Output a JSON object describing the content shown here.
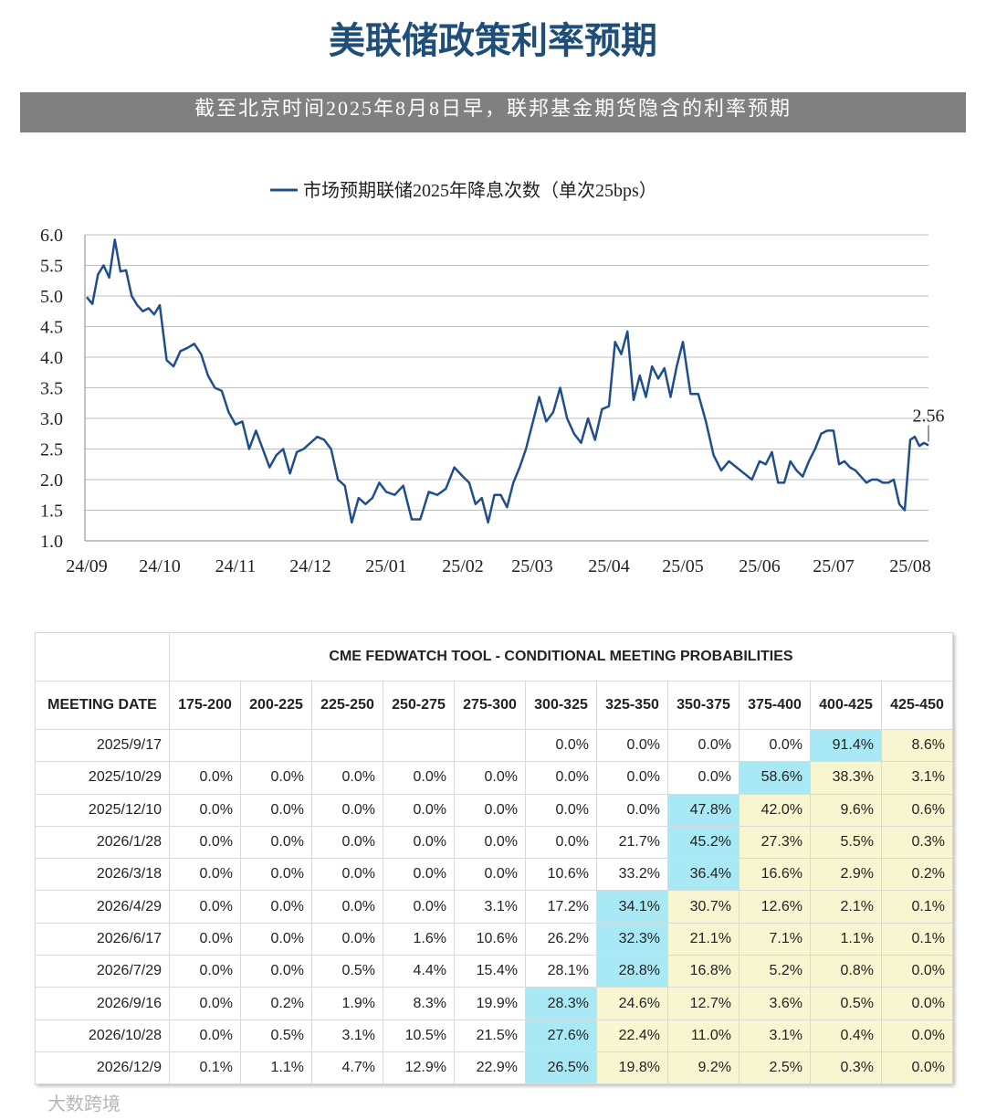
{
  "title": "美联储政策利率预期",
  "subtitle": "截至北京时间2025年8月8日早，联邦基金期货隐含的利率预期",
  "chart_data": {
    "type": "line",
    "categories": [
      "24/09",
      null,
      null,
      null,
      null,
      null,
      null,
      null,
      null,
      null,
      null,
      null,
      null,
      "24/10",
      null,
      null,
      null,
      null,
      null,
      null,
      null,
      null,
      null,
      null,
      "24/11",
      null,
      null,
      null,
      null,
      null,
      null,
      null,
      null,
      null,
      null,
      "24/12",
      null,
      null,
      null,
      null,
      null,
      null,
      null,
      null,
      null,
      null,
      "25/01",
      null,
      null,
      null,
      null,
      null,
      null,
      null,
      null,
      "25/02",
      null,
      null,
      null,
      null,
      null,
      null,
      null,
      null,
      null,
      null,
      "25/03",
      null,
      null,
      null,
      null,
      null,
      null,
      null,
      null,
      null,
      null,
      "25/04",
      null,
      null,
      null,
      null,
      null,
      null,
      null,
      null,
      null,
      null,
      null,
      "25/05",
      null,
      null,
      null,
      null,
      null,
      null,
      null,
      null,
      null,
      "25/06",
      null,
      null,
      null,
      null,
      null,
      null,
      null,
      null,
      null,
      null,
      null,
      "25/07",
      null,
      null,
      null,
      null,
      null,
      null,
      null,
      null,
      null,
      null,
      null,
      null,
      null,
      "25/08",
      null,
      null,
      null,
      null
    ],
    "series": [
      {
        "name": "市场预期联储2025年降息次数（单次25bps）",
        "color": "#1f4e8c",
        "values": [
          4.98,
          4.87,
          5.35,
          5.5,
          5.3,
          5.92,
          5.4,
          5.42,
          5.0,
          4.85,
          4.75,
          4.8,
          4.7,
          4.85,
          3.95,
          3.85,
          4.1,
          4.15,
          4.22,
          4.05,
          3.7,
          3.5,
          3.45,
          3.1,
          2.9,
          2.95,
          2.5,
          2.8,
          2.5,
          2.2,
          2.4,
          2.5,
          2.1,
          2.45,
          2.5,
          2.6,
          2.7,
          2.65,
          2.5,
          2.0,
          1.9,
          1.3,
          1.7,
          1.6,
          1.7,
          1.95,
          1.8,
          1.75,
          1.9,
          1.35,
          1.35,
          1.8,
          1.75,
          1.85,
          2.2,
          2.05,
          1.95,
          1.6,
          1.7,
          1.3,
          1.75,
          1.75,
          1.55,
          1.95,
          2.2,
          2.5,
          2.9,
          3.35,
          2.95,
          3.1,
          3.5,
          3.0,
          2.75,
          2.6,
          3.0,
          2.65,
          3.15,
          3.2,
          4.25,
          4.05,
          4.42,
          3.3,
          3.7,
          3.35,
          3.85,
          3.65,
          3.82,
          3.35,
          3.85,
          4.25,
          3.4,
          3.4,
          2.95,
          2.4,
          2.15,
          2.3,
          2.2,
          2.1,
          2.0,
          2.3,
          2.25,
          2.45,
          1.95,
          1.95,
          2.3,
          2.15,
          2.05,
          2.3,
          2.5,
          2.75,
          2.8,
          2.8,
          2.25,
          2.3,
          2.2,
          2.15,
          2.05,
          1.95,
          2.0,
          2.0,
          1.95,
          1.95,
          2.0,
          1.6,
          1.5,
          2.65,
          2.7,
          2.55,
          2.6,
          2.56
        ]
      }
    ],
    "annotation": "2.56",
    "ylim": [
      1,
      6
    ],
    "yticks": [
      {
        "value": 1,
        "label": "1.0"
      },
      {
        "value": 1.5,
        "label": "1.5"
      },
      {
        "value": 2,
        "label": "2.0"
      },
      {
        "value": 2.5,
        "label": "2.5"
      },
      {
        "value": 3,
        "label": "3.0"
      },
      {
        "value": 3.5,
        "label": "3.5"
      },
      {
        "value": 4,
        "label": "4.0"
      },
      {
        "value": 4.5,
        "label": "4.5"
      },
      {
        "value": 5,
        "label": "5.0"
      },
      {
        "value": 5.5,
        "label": "5.5"
      },
      {
        "value": 6,
        "label": "6.0"
      }
    ],
    "grid": true,
    "legend": "top"
  },
  "table": {
    "title": "CME FEDWATCH TOOL - CONDITIONAL MEETING PROBABILITIES",
    "columns": [
      "MEETING DATE",
      "175-200",
      "200-225",
      "225-250",
      "250-275",
      "275-300",
      "300-325",
      "325-350",
      "350-375",
      "375-400",
      "400-425",
      "425-450"
    ],
    "rows": [
      [
        "2025/9/17",
        null,
        null,
        null,
        null,
        null,
        "0.0%",
        "0.0%",
        "0.0%",
        "0.0%",
        "91.4%",
        "8.6%"
      ],
      [
        "2025/10/29",
        "0.0%",
        "0.0%",
        "0.0%",
        "0.0%",
        "0.0%",
        "0.0%",
        "0.0%",
        "0.0%",
        "58.6%",
        "38.3%",
        "3.1%"
      ],
      [
        "2025/12/10",
        "0.0%",
        "0.0%",
        "0.0%",
        "0.0%",
        "0.0%",
        "0.0%",
        "0.0%",
        "47.8%",
        "42.0%",
        "9.6%",
        "0.6%"
      ],
      [
        "2026/1/28",
        "0.0%",
        "0.0%",
        "0.0%",
        "0.0%",
        "0.0%",
        "0.0%",
        "21.7%",
        "45.2%",
        "27.3%",
        "5.5%",
        "0.3%"
      ],
      [
        "2026/3/18",
        "0.0%",
        "0.0%",
        "0.0%",
        "0.0%",
        "0.0%",
        "10.6%",
        "33.2%",
        "36.4%",
        "16.6%",
        "2.9%",
        "0.2%"
      ],
      [
        "2026/4/29",
        "0.0%",
        "0.0%",
        "0.0%",
        "0.0%",
        "3.1%",
        "17.2%",
        "34.1%",
        "30.7%",
        "12.6%",
        "2.1%",
        "0.1%"
      ],
      [
        "2026/6/17",
        "0.0%",
        "0.0%",
        "0.0%",
        "1.6%",
        "10.6%",
        "26.2%",
        "32.3%",
        "21.1%",
        "7.1%",
        "1.1%",
        "0.1%"
      ],
      [
        "2026/7/29",
        "0.0%",
        "0.0%",
        "0.5%",
        "4.4%",
        "15.4%",
        "28.1%",
        "28.8%",
        "16.8%",
        "5.2%",
        "0.8%",
        "0.0%"
      ],
      [
        "2026/9/16",
        "0.0%",
        "0.2%",
        "1.9%",
        "8.3%",
        "19.9%",
        "28.3%",
        "24.6%",
        "12.7%",
        "3.6%",
        "0.5%",
        "0.0%"
      ],
      [
        "2026/10/28",
        "0.0%",
        "0.5%",
        "3.1%",
        "10.5%",
        "21.5%",
        "27.6%",
        "22.4%",
        "11.0%",
        "3.1%",
        "0.4%",
        "0.0%"
      ],
      [
        "2026/12/9",
        "0.1%",
        "1.1%",
        "4.7%",
        "12.9%",
        "22.9%",
        "26.5%",
        "19.8%",
        "9.2%",
        "2.5%",
        "0.3%",
        "0.0%"
      ]
    ]
  },
  "watermark": "大数跨境"
}
